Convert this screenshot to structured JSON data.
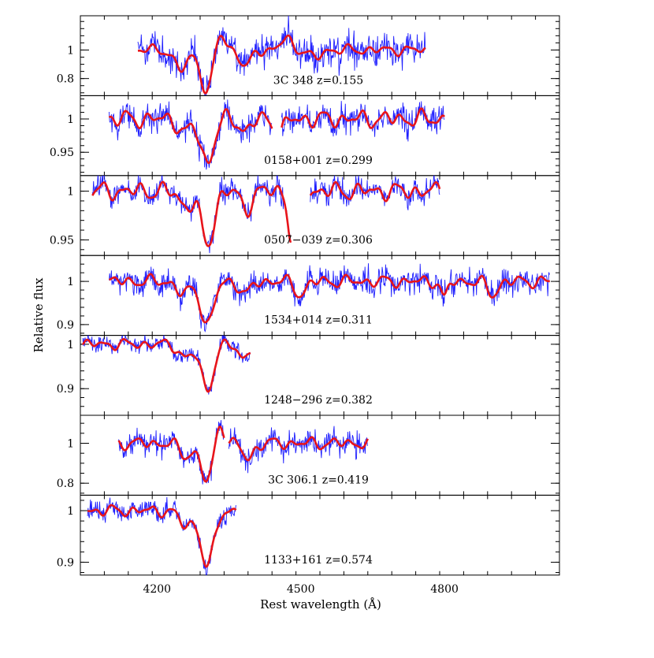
{
  "chart_data": {
    "type": "line",
    "xlabel": "Rest wavelength (Å)",
    "ylabel": "Relative flux",
    "xlim": [
      4040,
      5040
    ],
    "x_major_ticks": [
      4200,
      4500,
      4800
    ],
    "x_minor_step": 50,
    "colors": {
      "observed": "#1f1fff",
      "model": "#e8141a"
    },
    "panels": [
      {
        "label": "3C 348  z=0.155",
        "ylim": [
          0.68,
          1.24
        ],
        "yticks": [
          0.8,
          1.0
        ],
        "ytick_labels": [
          "0.8",
          "1"
        ],
        "yminor_step": 0.05,
        "segments": [
          [
            4160,
            4760
          ]
        ],
        "features": [
          [
            4305,
            -0.3,
            6
          ],
          [
            4250,
            -0.14,
            6
          ],
          [
            4385,
            -0.12,
            5
          ],
          [
            4330,
            0.14,
            5
          ],
          [
            4470,
            0.08,
            5
          ],
          [
            4530,
            -0.06,
            5
          ]
        ],
        "ripple": 0.035,
        "noise": 0.11,
        "seed": 3
      },
      {
        "label": "0158+001  z=0.299",
        "ylim": [
          0.915,
          1.035
        ],
        "yticks": [
          0.95,
          1.0
        ],
        "ytick_labels": [
          "0.95",
          "1"
        ],
        "yminor_step": 0.01,
        "segments": [
          [
            4100,
            4440
          ],
          [
            4460,
            4800
          ]
        ],
        "features": [
          [
            4305,
            -0.065,
            6
          ],
          [
            4260,
            -0.02,
            6
          ],
          [
            4385,
            -0.018,
            5
          ],
          [
            4455,
            -0.02,
            5
          ]
        ],
        "ripple": 0.013,
        "noise": 0.02,
        "seed": 7
      },
      {
        "label": "0507−039  z=0.306",
        "ylim": [
          0.934,
          1.016
        ],
        "yticks": [
          0.95,
          1.0
        ],
        "ytick_labels": [
          "0.95",
          "1"
        ],
        "yminor_step": 0.01,
        "segments": [
          [
            4065,
            4480
          ],
          [
            4520,
            4790
          ]
        ],
        "features": [
          [
            4305,
            -0.055,
            6
          ],
          [
            4260,
            -0.015,
            6
          ],
          [
            4385,
            -0.018,
            5
          ],
          [
            4480,
            -0.05,
            3
          ]
        ],
        "ripple": 0.009,
        "noise": 0.012,
        "seed": 11
      },
      {
        "label": "1534+014  z=0.311",
        "ylim": [
          0.875,
          1.06
        ],
        "yticks": [
          0.9,
          1.0
        ],
        "ytick_labels": [
          "0.9",
          "1"
        ],
        "yminor_step": 0.02,
        "segments": [
          [
            4100,
            5020
          ]
        ],
        "features": [
          [
            4305,
            -0.1,
            6
          ],
          [
            4255,
            -0.03,
            6
          ],
          [
            4385,
            -0.03,
            5
          ],
          [
            4500,
            -0.03,
            5
          ],
          [
            4900,
            -0.03,
            5
          ],
          [
            4800,
            -0.04,
            3
          ]
        ],
        "ripple": 0.014,
        "noise": 0.03,
        "seed": 19
      },
      {
        "label": "1248−296  z=0.382",
        "ylim": [
          0.84,
          1.02
        ],
        "yticks": [
          0.9,
          1.0
        ],
        "ytick_labels": [
          "0.9",
          "1"
        ],
        "yminor_step": 0.02,
        "segments": [
          [
            4045,
            4395
          ]
        ],
        "features": [
          [
            4305,
            -0.1,
            6
          ],
          [
            4260,
            -0.03,
            6
          ],
          [
            4380,
            -0.03,
            5
          ]
        ],
        "ripple": 0.012,
        "noise": 0.018,
        "seed": 23
      },
      {
        "label": "3C 306.1  z=0.419",
        "ylim": [
          0.74,
          1.14
        ],
        "yticks": [
          0.8,
          1.0
        ],
        "ytick_labels": [
          "0.8",
          "1"
        ],
        "yminor_step": 0.05,
        "segments": [
          [
            4120,
            4340
          ],
          [
            4350,
            4640
          ]
        ],
        "features": [
          [
            4305,
            -0.19,
            6
          ],
          [
            4260,
            -0.06,
            6
          ],
          [
            4390,
            -0.08,
            5
          ],
          [
            4330,
            0.12,
            4
          ]
        ],
        "ripple": 0.03,
        "noise": 0.06,
        "seed": 29
      },
      {
        "label": "1133+161  z=0.574",
        "ylim": [
          0.875,
          1.03
        ],
        "yticks": [
          0.9,
          1.0
        ],
        "ytick_labels": [
          "0.9",
          "1"
        ],
        "yminor_step": 0.02,
        "segments": [
          [
            4055,
            4365
          ]
        ],
        "features": [
          [
            4305,
            -0.11,
            6
          ],
          [
            4260,
            -0.03,
            6
          ]
        ],
        "ripple": 0.011,
        "noise": 0.02,
        "seed": 31
      }
    ]
  }
}
